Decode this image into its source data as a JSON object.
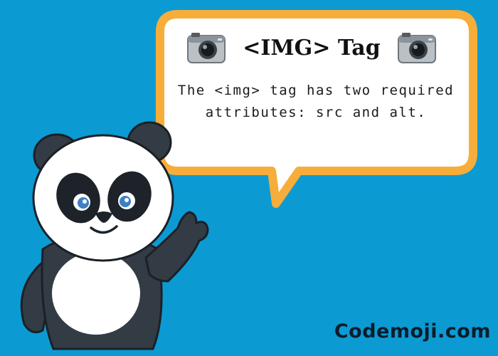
{
  "bubble": {
    "title": "<IMG> Tag",
    "body": "The <img> tag has two required attributes: src and alt.",
    "icon_left": "camera-icon",
    "icon_right": "camera-icon"
  },
  "brand": {
    "name": "Codemoji.com"
  },
  "colors": {
    "background": "#0c9ad3",
    "bubble_border": "#f7ad3a",
    "bubble_fill": "#ffffff",
    "panda_dark": "#333b44",
    "panda_light": "#ffffff",
    "text": "#111111"
  }
}
